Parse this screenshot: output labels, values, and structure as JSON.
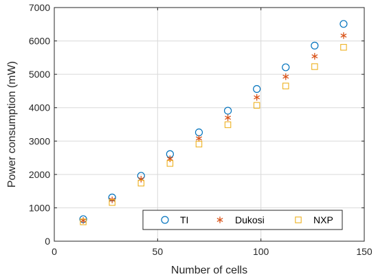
{
  "chart_data": {
    "type": "scatter",
    "title": "",
    "xlabel": "Number of cells",
    "ylabel": "Power consumption (mW)",
    "xlim": [
      0,
      150
    ],
    "ylim": [
      0,
      7000
    ],
    "xticks": [
      0,
      50,
      100,
      150
    ],
    "yticks": [
      0,
      1000,
      2000,
      3000,
      4000,
      5000,
      6000,
      7000
    ],
    "xtick_labels": [
      "0",
      "50",
      "100",
      "150"
    ],
    "ytick_labels": [
      "0",
      "1000",
      "2000",
      "3000",
      "4000",
      "5000",
      "6000",
      "7000"
    ],
    "grid": true,
    "legend_position": "bottom-right",
    "x": [
      14,
      28,
      42,
      56,
      70,
      84,
      98,
      112,
      126,
      140
    ],
    "series": [
      {
        "name": "TI",
        "marker": "circle",
        "color": "#0072BD",
        "values": [
          660,
          1310,
          1960,
          2610,
          3260,
          3910,
          4560,
          5210,
          5860,
          6510
        ]
      },
      {
        "name": "Dukosi",
        "marker": "asterisk",
        "color": "#D95319",
        "values": [
          620,
          1240,
          1860,
          2470,
          3080,
          3700,
          4310,
          4930,
          5540,
          6160
        ]
      },
      {
        "name": "NXP",
        "marker": "square",
        "color": "#EDB120",
        "values": [
          580,
          1160,
          1740,
          2330,
          2910,
          3490,
          4070,
          4650,
          5230,
          5810
        ]
      }
    ]
  }
}
